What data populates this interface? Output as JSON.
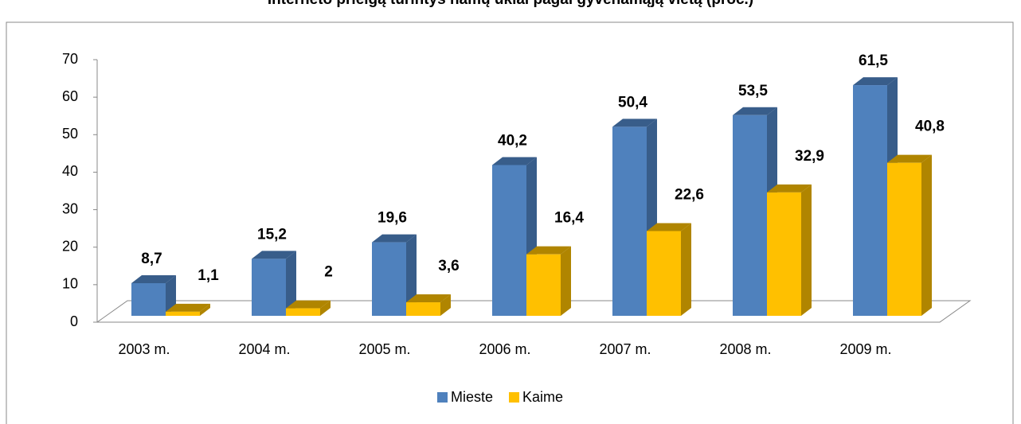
{
  "chart_data": {
    "type": "bar3d",
    "title": "Interneto prieigą turintys namų ūkiai pagal gyvenamąją vietą (proc.)",
    "categories": [
      "2003 m.",
      "2004 m.",
      "2005 m.",
      "2006 m.",
      "2007 m.",
      "2008 m.",
      "2009 m."
    ],
    "series": [
      {
        "name": "Mieste",
        "color": "#4f81bd",
        "side": "#385d8a",
        "values": [
          8.7,
          15.2,
          19.6,
          40.2,
          50.4,
          53.5,
          61.5
        ],
        "value_labels": [
          "8,7",
          "15,2",
          "19,6",
          "40,2",
          "50,4",
          "53,5",
          "61,5"
        ]
      },
      {
        "name": "Kaime",
        "color": "#ffc000",
        "side": "#b08500",
        "values": [
          1.1,
          2,
          3.6,
          16.4,
          22.6,
          32.9,
          40.8
        ],
        "value_labels": [
          "1,1",
          "2",
          "3,6",
          "16,4",
          "22,6",
          "32,9",
          "40,8"
        ]
      }
    ],
    "ylim": [
      0,
      70
    ],
    "yticks": [
      0,
      10,
      20,
      30,
      40,
      50,
      60,
      70
    ],
    "legend": "bottom"
  }
}
